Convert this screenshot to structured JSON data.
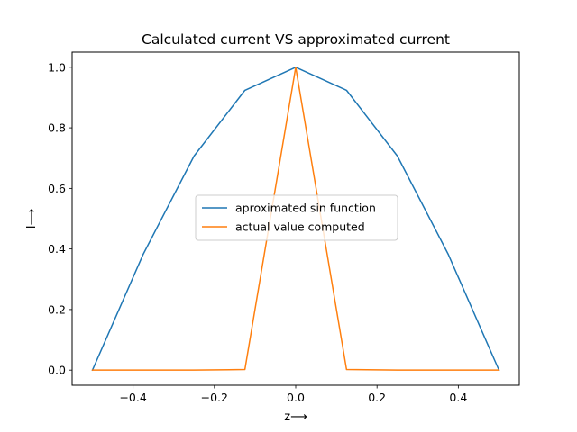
{
  "chart_data": {
    "type": "line",
    "title": "Calculated current VS approximated current",
    "xlabel": "z⟶",
    "ylabel": "I⟶",
    "xlim": [
      -0.55,
      0.55
    ],
    "ylim": [
      -0.05,
      1.05
    ],
    "xticks": [
      -0.4,
      -0.2,
      0.0,
      0.2,
      0.4
    ],
    "xtick_labels": [
      "−0.4",
      "−0.2",
      "0.0",
      "0.2",
      "0.4"
    ],
    "yticks": [
      0.0,
      0.2,
      0.4,
      0.6,
      0.8,
      1.0
    ],
    "ytick_labels": [
      "0.0",
      "0.2",
      "0.4",
      "0.6",
      "0.8",
      "1.0"
    ],
    "grid": false,
    "legend_position": "center",
    "x": [
      -0.5,
      -0.375,
      -0.25,
      -0.125,
      0.0,
      0.125,
      0.25,
      0.375,
      0.5
    ],
    "series": [
      {
        "name": "aproximated sin function",
        "color": "#1f77b4",
        "values": [
          0.0,
          0.383,
          0.707,
          0.924,
          1.0,
          0.924,
          0.707,
          0.383,
          0.0
        ]
      },
      {
        "name": "actual value computed",
        "color": "#ff7f0e",
        "values": [
          0.0,
          0.0,
          0.0,
          0.002,
          1.0,
          0.002,
          0.0,
          0.0,
          0.0
        ]
      }
    ]
  }
}
